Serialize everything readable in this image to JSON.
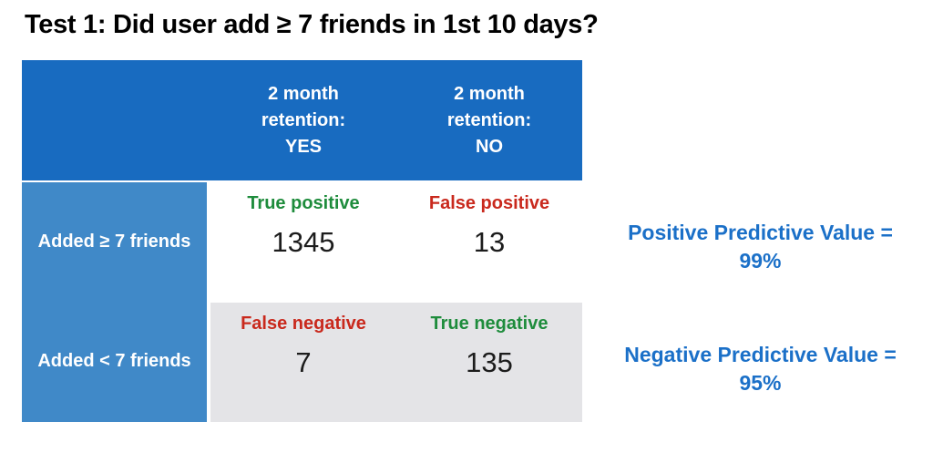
{
  "title": "Test 1: Did user add ≥ 7 friends in 1st 10 days?",
  "colors": {
    "header_blue": "#186BC0",
    "row_label_blue": "#4089C8",
    "cell_gray": "#E4E4E7",
    "positive_green": "#1E8C3C",
    "negative_red": "#C9291D",
    "metric_blue": "#1B70C8"
  },
  "table": {
    "col_headers": [
      "2 month\nretention:\nYES",
      "2 month\nretention:\nNO"
    ],
    "row_headers": [
      "Added ≥ 7 friends",
      "Added < 7 friends"
    ],
    "cells": [
      {
        "label": "True positive",
        "value": "1345"
      },
      {
        "label": "False positive",
        "value": "13"
      },
      {
        "label": "False negative",
        "value": "7"
      },
      {
        "label": "True negative",
        "value": "135"
      }
    ]
  },
  "metrics": [
    {
      "text": "Positive Predictive Value =\n99%"
    },
    {
      "text": "Negative Predictive Value =\n95%"
    }
  ],
  "chart_data": {
    "type": "table",
    "title": "Test 1: Did user add ≥ 7 friends in 1st 10 days?",
    "columns": [
      "",
      "2 month retention: YES",
      "2 month retention: NO"
    ],
    "rows": [
      [
        "Added ≥ 7 friends",
        1345,
        13
      ],
      [
        "Added < 7 friends",
        7,
        135
      ]
    ],
    "cell_labels": [
      [
        "True positive",
        "False positive"
      ],
      [
        "False negative",
        "True negative"
      ]
    ],
    "derived_metrics": [
      {
        "name": "Positive Predictive Value",
        "value": "99%"
      },
      {
        "name": "Negative Predictive Value",
        "value": "95%"
      }
    ]
  }
}
